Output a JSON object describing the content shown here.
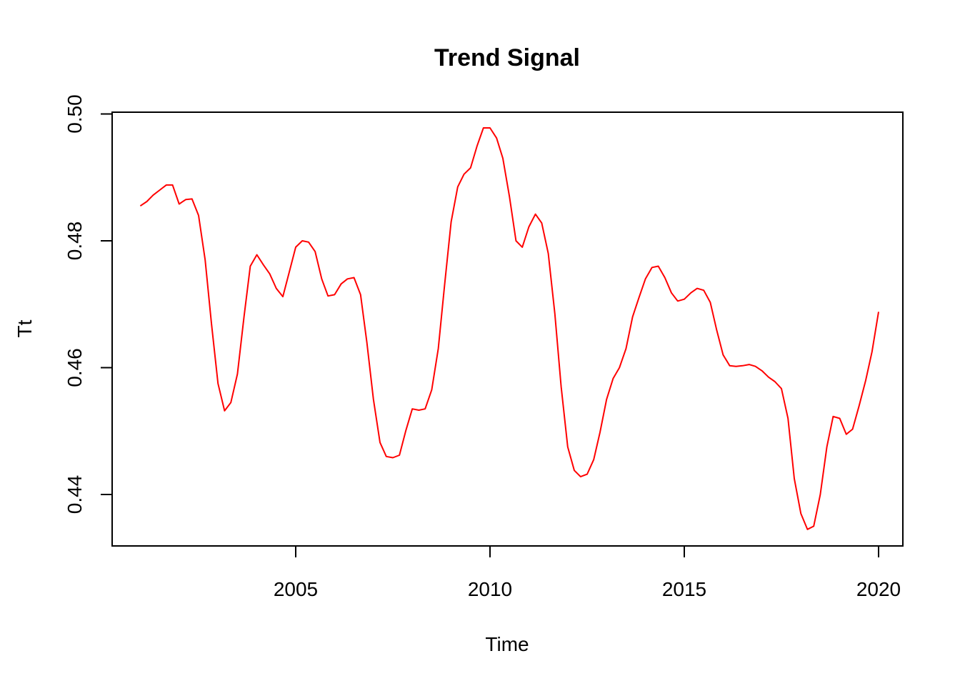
{
  "chart_data": {
    "type": "line",
    "title": "Trend Signal",
    "xlabel": "Time",
    "ylabel": "Tt",
    "xlim": [
      2000.5,
      2020.6
    ],
    "ylim": [
      0.4334,
      0.5
    ],
    "x_ticks": [
      2005,
      2010,
      2015,
      2020
    ],
    "x_tick_labels": [
      "2005",
      "2010",
      "2015",
      "2020"
    ],
    "y_ticks": [
      0.44,
      0.46,
      0.48,
      0.5
    ],
    "y_tick_labels": [
      "0.44",
      "0.46",
      "0.48",
      "0.50"
    ],
    "grid": false,
    "series": [
      {
        "name": "Tt",
        "color": "#ff0000",
        "points": [
          [
            2001.0,
            0.4855
          ],
          [
            2001.17,
            0.4862
          ],
          [
            2001.33,
            0.4872
          ],
          [
            2001.5,
            0.488
          ],
          [
            2001.67,
            0.4888
          ],
          [
            2001.83,
            0.4888
          ],
          [
            2002.0,
            0.4858
          ],
          [
            2002.17,
            0.4865
          ],
          [
            2002.33,
            0.4866
          ],
          [
            2002.5,
            0.484
          ],
          [
            2002.67,
            0.477
          ],
          [
            2002.83,
            0.467
          ],
          [
            2003.0,
            0.4575
          ],
          [
            2003.17,
            0.4532
          ],
          [
            2003.33,
            0.4545
          ],
          [
            2003.5,
            0.459
          ],
          [
            2003.67,
            0.468
          ],
          [
            2003.83,
            0.476
          ],
          [
            2004.0,
            0.4778
          ],
          [
            2004.17,
            0.4762
          ],
          [
            2004.33,
            0.4748
          ],
          [
            2004.5,
            0.4725
          ],
          [
            2004.67,
            0.4712
          ],
          [
            2004.83,
            0.475
          ],
          [
            2005.0,
            0.479
          ],
          [
            2005.17,
            0.48
          ],
          [
            2005.33,
            0.4798
          ],
          [
            2005.5,
            0.4783
          ],
          [
            2005.67,
            0.474
          ],
          [
            2005.83,
            0.4713
          ],
          [
            2006.0,
            0.4715
          ],
          [
            2006.17,
            0.4732
          ],
          [
            2006.33,
            0.474
          ],
          [
            2006.5,
            0.4742
          ],
          [
            2006.67,
            0.4715
          ],
          [
            2006.83,
            0.464
          ],
          [
            2007.0,
            0.455
          ],
          [
            2007.17,
            0.4482
          ],
          [
            2007.33,
            0.446
          ],
          [
            2007.5,
            0.4458
          ],
          [
            2007.67,
            0.4462
          ],
          [
            2007.83,
            0.45
          ],
          [
            2008.0,
            0.4535
          ],
          [
            2008.17,
            0.4533
          ],
          [
            2008.33,
            0.4535
          ],
          [
            2008.5,
            0.4565
          ],
          [
            2008.67,
            0.463
          ],
          [
            2008.83,
            0.473
          ],
          [
            2009.0,
            0.483
          ],
          [
            2009.17,
            0.4885
          ],
          [
            2009.33,
            0.4905
          ],
          [
            2009.5,
            0.4915
          ],
          [
            2009.67,
            0.495
          ],
          [
            2009.83,
            0.4978
          ],
          [
            2010.0,
            0.4978
          ],
          [
            2010.17,
            0.4962
          ],
          [
            2010.33,
            0.493
          ],
          [
            2010.5,
            0.487
          ],
          [
            2010.67,
            0.48
          ],
          [
            2010.83,
            0.479
          ],
          [
            2011.0,
            0.4822
          ],
          [
            2011.17,
            0.4842
          ],
          [
            2011.33,
            0.4828
          ],
          [
            2011.5,
            0.478
          ],
          [
            2011.67,
            0.4685
          ],
          [
            2011.83,
            0.457
          ],
          [
            2012.0,
            0.4475
          ],
          [
            2012.17,
            0.4438
          ],
          [
            2012.33,
            0.4428
          ],
          [
            2012.5,
            0.4432
          ],
          [
            2012.67,
            0.4455
          ],
          [
            2012.83,
            0.4498
          ],
          [
            2013.0,
            0.455
          ],
          [
            2013.17,
            0.4583
          ],
          [
            2013.33,
            0.46
          ],
          [
            2013.5,
            0.463
          ],
          [
            2013.67,
            0.468
          ],
          [
            2013.83,
            0.471
          ],
          [
            2014.0,
            0.474
          ],
          [
            2014.17,
            0.4758
          ],
          [
            2014.33,
            0.476
          ],
          [
            2014.5,
            0.4742
          ],
          [
            2014.67,
            0.4718
          ],
          [
            2014.83,
            0.4705
          ],
          [
            2015.0,
            0.4708
          ],
          [
            2015.17,
            0.4718
          ],
          [
            2015.33,
            0.4725
          ],
          [
            2015.5,
            0.4722
          ],
          [
            2015.67,
            0.4703
          ],
          [
            2015.83,
            0.466
          ],
          [
            2016.0,
            0.462
          ],
          [
            2016.17,
            0.4603
          ],
          [
            2016.33,
            0.4602
          ],
          [
            2016.5,
            0.4603
          ],
          [
            2016.67,
            0.4605
          ],
          [
            2016.83,
            0.4602
          ],
          [
            2017.0,
            0.4595
          ],
          [
            2017.17,
            0.4585
          ],
          [
            2017.33,
            0.4578
          ],
          [
            2017.5,
            0.4567
          ],
          [
            2017.67,
            0.452
          ],
          [
            2017.83,
            0.4425
          ],
          [
            2018.0,
            0.437
          ],
          [
            2018.17,
            0.4345
          ],
          [
            2018.33,
            0.435
          ],
          [
            2018.5,
            0.44
          ],
          [
            2018.67,
            0.4475
          ],
          [
            2018.83,
            0.4523
          ],
          [
            2019.0,
            0.452
          ],
          [
            2019.17,
            0.4495
          ],
          [
            2019.33,
            0.4503
          ],
          [
            2019.5,
            0.454
          ],
          [
            2019.67,
            0.458
          ],
          [
            2019.83,
            0.4625
          ],
          [
            2020.0,
            0.4688
          ]
        ]
      }
    ]
  }
}
